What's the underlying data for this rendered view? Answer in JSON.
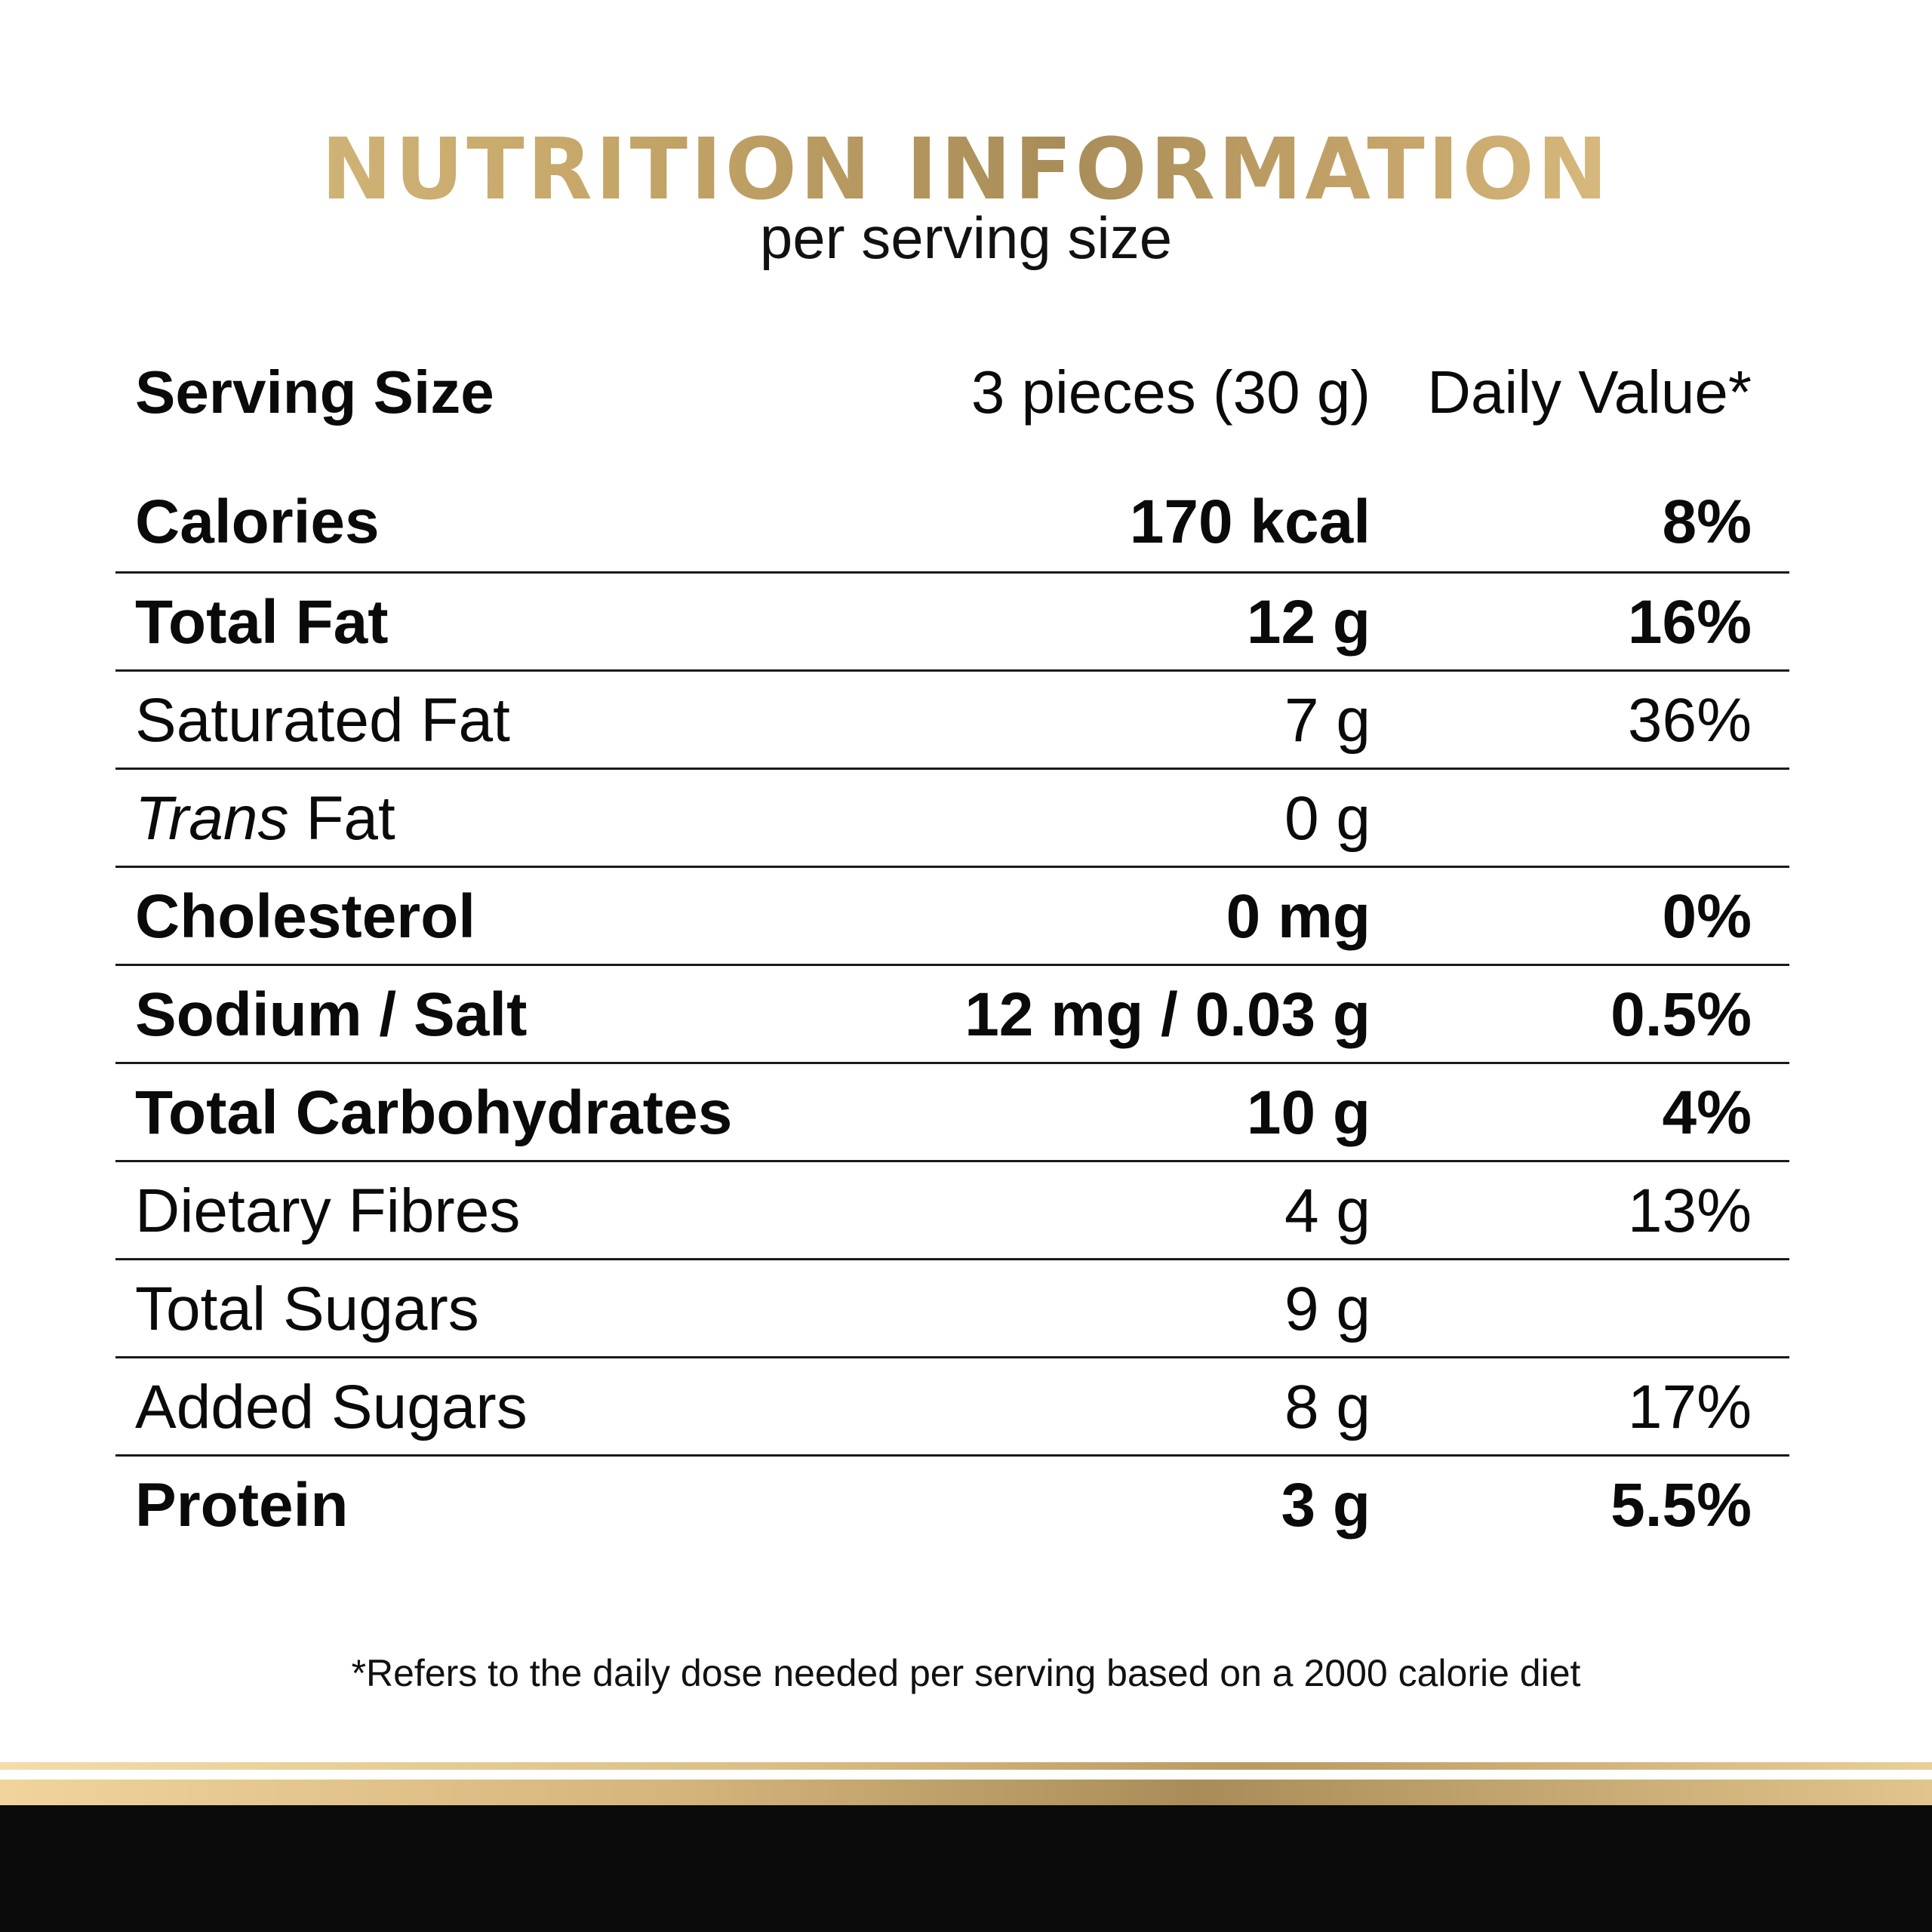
{
  "header": {
    "title": "NUTRITION INFORMATION",
    "subtitle": "per serving size"
  },
  "serving": {
    "label": "Serving Size",
    "amount": "3 pieces (30 g)",
    "dv_label": "Daily Value*"
  },
  "rows": [
    {
      "name": "Calories",
      "amount": "170 kcal",
      "dv": "8%"
    },
    {
      "name": "Total Fat",
      "amount": "12 g",
      "dv": "16%"
    },
    {
      "name": "Saturated Fat",
      "amount": "7 g",
      "dv": "36%"
    },
    {
      "name_italic": "Trans",
      "name_rest": " Fat",
      "amount": "0 g",
      "dv": ""
    },
    {
      "name": "Cholesterol",
      "amount": "0 mg",
      "dv": "0%"
    },
    {
      "name": "Sodium / Salt",
      "amount": "12 mg / 0.03 g",
      "dv": "0.5%"
    },
    {
      "name": "Total Carbohydrates",
      "amount": "10 g",
      "dv": "4%"
    },
    {
      "name": "Dietary Fibres",
      "amount": "4 g",
      "dv": "13%"
    },
    {
      "name": "Total Sugars",
      "amount": "9 g",
      "dv": ""
    },
    {
      "name": "Added Sugars",
      "amount": "8 g",
      "dv": "17%"
    },
    {
      "name": "Protein",
      "amount": "3 g",
      "dv": "5.5%"
    }
  ],
  "footnote": "*Refers to the daily dose needed per serving based on a 2000 calorie diet",
  "colors": {
    "gold_light": "#f2d8a0",
    "gold_mid": "#c7a86a",
    "gold_dark": "#a98d58",
    "footer_black": "#0a0a0a"
  }
}
